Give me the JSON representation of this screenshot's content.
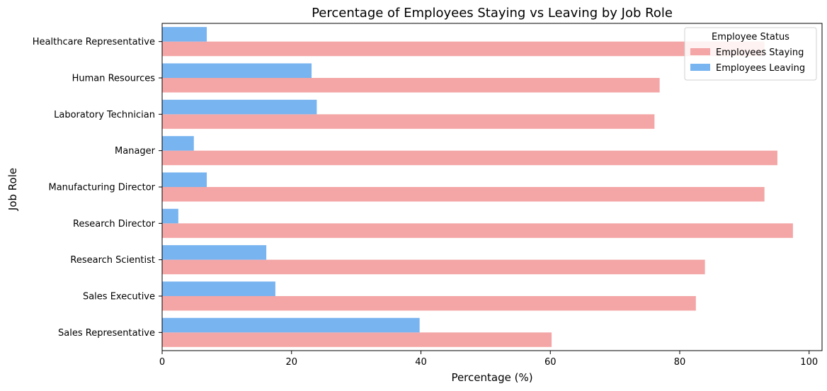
{
  "chart_data": {
    "type": "bar",
    "orientation": "horizontal",
    "title": "Percentage of Employees Staying vs Leaving by Job Role",
    "xlabel": "Percentage (%)",
    "ylabel": "Job Role",
    "xlim": [
      0,
      102
    ],
    "xticks": [
      0,
      20,
      40,
      60,
      80,
      100
    ],
    "grid": false,
    "categories": [
      "Healthcare Representative",
      "Human Resources",
      "Laboratory Technician",
      "Manager",
      "Manufacturing Director",
      "Research Director",
      "Research Scientist",
      "Sales Executive",
      "Sales Representative"
    ],
    "series": [
      {
        "name": "Employees Staying",
        "color": "#f4a6a6",
        "values": [
          93.1,
          76.9,
          76.1,
          95.1,
          93.1,
          97.5,
          83.9,
          82.5,
          60.2
        ]
      },
      {
        "name": "Employees Leaving",
        "color": "#78b4f0",
        "values": [
          6.9,
          23.1,
          23.9,
          4.9,
          6.9,
          2.5,
          16.1,
          17.5,
          39.8
        ]
      }
    ],
    "legend": {
      "title": "Employee Status",
      "placement": "top-right",
      "entries": [
        "Employees Staying",
        "Employees Leaving"
      ]
    }
  }
}
